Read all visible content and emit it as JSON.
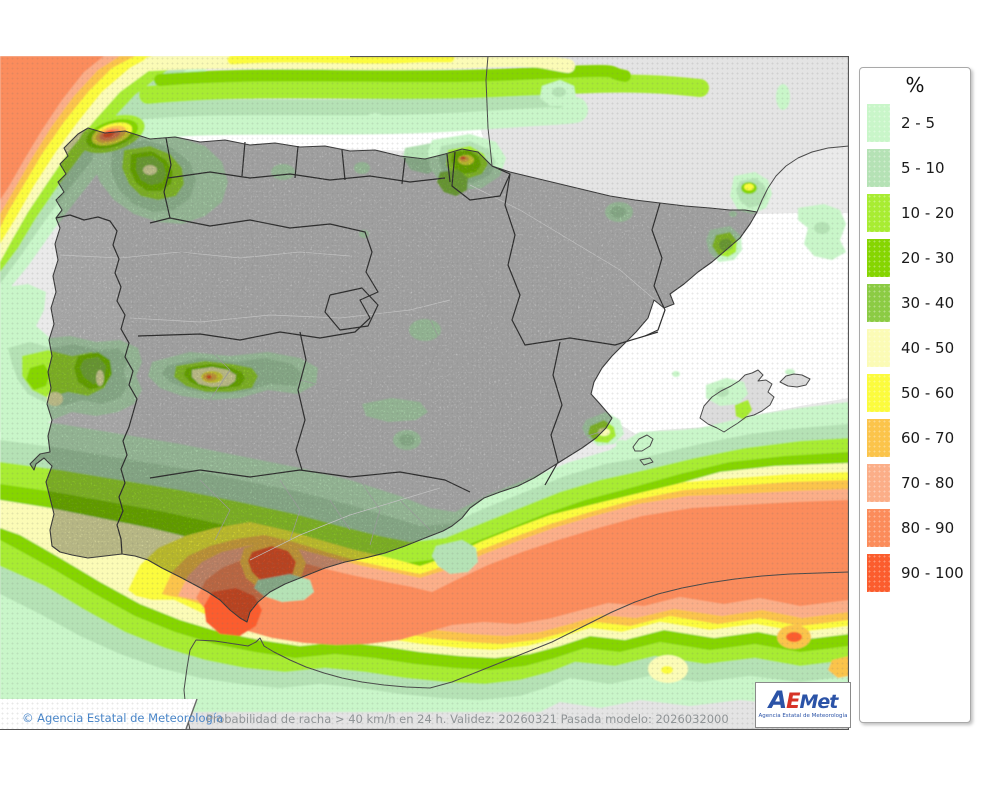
{
  "legend": {
    "title": "%",
    "items": [
      {
        "label": "2 - 5",
        "color": "#c9f6c9"
      },
      {
        "label": "5 - 10",
        "color": "#b5e2b5"
      },
      {
        "label": "10 - 20",
        "color": "#a8ec33"
      },
      {
        "label": "20 - 30",
        "color": "#86d502"
      },
      {
        "label": "30 - 40",
        "color": "#8ccb44"
      },
      {
        "label": "40 - 50",
        "color": "#fbfbb6"
      },
      {
        "label": "50 - 60",
        "color": "#fbfb3e"
      },
      {
        "label": "60 - 70",
        "color": "#fbc44b"
      },
      {
        "label": "70 - 80",
        "color": "#fbae88"
      },
      {
        "label": "80 - 90",
        "color": "#fb8c5b"
      },
      {
        "label": "90 - 100",
        "color": "#fb5d2e"
      }
    ]
  },
  "footer": {
    "copyright": "© Agencia Estatal de Meteorología",
    "info": "Probabilidad de racha > 40 km/h en 24 h. Validez: 20260321 Pasada modelo: 2026032000"
  },
  "logo": {
    "a": "A",
    "e": "E",
    "met": "Met",
    "subtext": "Agencia Estatal de Meteorología"
  },
  "map": {
    "colors": {
      "sea": "#eaeaea",
      "land_spain": "#dcdcdc",
      "land_neighbors": "#e4e4e4",
      "coastline": "#3a3a3a",
      "frame": "#555555",
      "footer_blue": "#4a86c8",
      "footer_gray": "#8f9496",
      "logo_blue": "#2b53a7",
      "logo_red": "#d63327"
    }
  }
}
